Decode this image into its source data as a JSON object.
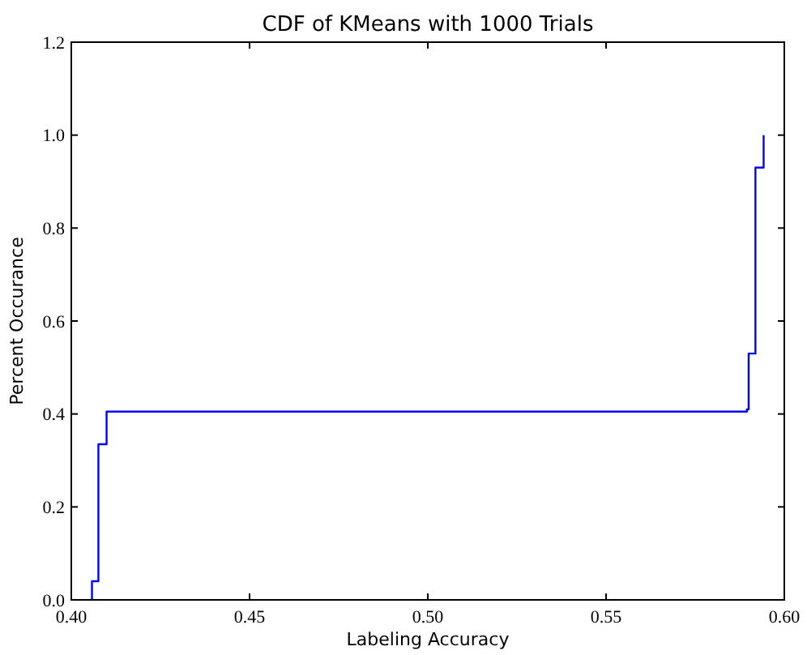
{
  "chart_data": {
    "type": "step",
    "title": "CDF of KMeans with 1000 Trials",
    "xlabel": "Labeling Accuracy",
    "ylabel": "Percent Occurance",
    "x": [
      0.4058,
      0.4058,
      0.4076,
      0.4099,
      0.5895,
      0.59,
      0.5919,
      0.5942
    ],
    "series": [
      {
        "color": "#0000ff",
        "values": [
          0,
          0.04,
          0.335,
          0.405,
          0.41,
          0.53,
          0.93,
          1.0
        ]
      }
    ],
    "xlim": [
      0.4,
      0.6
    ],
    "xticks": [
      {
        "value": 0.4,
        "label": "0.40"
      },
      0.45,
      {
        "value": 0.5,
        "label": "0.50"
      },
      0.55,
      {
        "value": 0.6,
        "label": "0.60"
      }
    ],
    "ylim": [
      0,
      1.2
    ],
    "yticks": [
      {
        "value": 0,
        "label": "0.0"
      },
      0.2,
      0.4,
      0.6,
      0.8,
      {
        "value": 1.0,
        "label": "1.0"
      },
      1.2
    ],
    "grid": false
  }
}
